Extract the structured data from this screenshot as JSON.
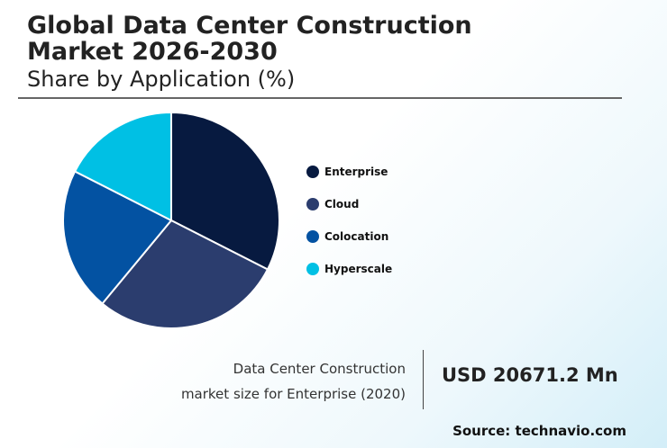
{
  "header": {
    "title_line1": "Global Data Center Construction",
    "title_line2": "Market 2026-2030",
    "subtitle": "Share by Application (%)"
  },
  "chart_data": {
    "type": "pie",
    "categories": [
      "Enterprise",
      "Cloud",
      "Colocation",
      "Hyperscale"
    ],
    "values": [
      32.5,
      28.5,
      21.5,
      17.5
    ],
    "colors": [
      "#071a40",
      "#2b3d6e",
      "#0352a2",
      "#00c0e4"
    ],
    "legend_position": "right"
  },
  "stat": {
    "label_line1": "Data Center Construction",
    "label_line2": "market size for Enterprise (2020)",
    "value": "USD 20671.2 Mn"
  },
  "source": "Source: technavio.com"
}
